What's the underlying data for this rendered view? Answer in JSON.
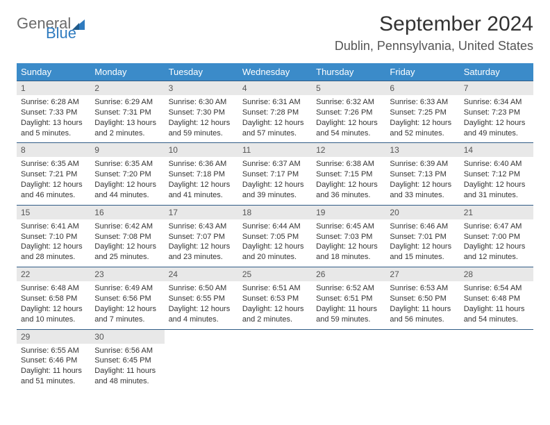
{
  "logo": {
    "general": "General",
    "blue": "Blue",
    "sail_color": "#2f7bbf"
  },
  "title": "September 2024",
  "location": "Dublin, Pennsylvania, United States",
  "style": {
    "header_bg": "#3b8bc9",
    "header_fg": "#ffffff",
    "daynum_bg": "#e8e8e8",
    "rule_color": "#2f5b85",
    "body_font_size": 11,
    "th_font_size": 13,
    "title_font_size": 30,
    "location_font_size": 18
  },
  "weekdays": [
    "Sunday",
    "Monday",
    "Tuesday",
    "Wednesday",
    "Thursday",
    "Friday",
    "Saturday"
  ],
  "weeks": [
    [
      {
        "day": "1",
        "sunrise": "Sunrise: 6:28 AM",
        "sunset": "Sunset: 7:33 PM",
        "daylight": "Daylight: 13 hours and 5 minutes."
      },
      {
        "day": "2",
        "sunrise": "Sunrise: 6:29 AM",
        "sunset": "Sunset: 7:31 PM",
        "daylight": "Daylight: 13 hours and 2 minutes."
      },
      {
        "day": "3",
        "sunrise": "Sunrise: 6:30 AM",
        "sunset": "Sunset: 7:30 PM",
        "daylight": "Daylight: 12 hours and 59 minutes."
      },
      {
        "day": "4",
        "sunrise": "Sunrise: 6:31 AM",
        "sunset": "Sunset: 7:28 PM",
        "daylight": "Daylight: 12 hours and 57 minutes."
      },
      {
        "day": "5",
        "sunrise": "Sunrise: 6:32 AM",
        "sunset": "Sunset: 7:26 PM",
        "daylight": "Daylight: 12 hours and 54 minutes."
      },
      {
        "day": "6",
        "sunrise": "Sunrise: 6:33 AM",
        "sunset": "Sunset: 7:25 PM",
        "daylight": "Daylight: 12 hours and 52 minutes."
      },
      {
        "day": "7",
        "sunrise": "Sunrise: 6:34 AM",
        "sunset": "Sunset: 7:23 PM",
        "daylight": "Daylight: 12 hours and 49 minutes."
      }
    ],
    [
      {
        "day": "8",
        "sunrise": "Sunrise: 6:35 AM",
        "sunset": "Sunset: 7:21 PM",
        "daylight": "Daylight: 12 hours and 46 minutes."
      },
      {
        "day": "9",
        "sunrise": "Sunrise: 6:35 AM",
        "sunset": "Sunset: 7:20 PM",
        "daylight": "Daylight: 12 hours and 44 minutes."
      },
      {
        "day": "10",
        "sunrise": "Sunrise: 6:36 AM",
        "sunset": "Sunset: 7:18 PM",
        "daylight": "Daylight: 12 hours and 41 minutes."
      },
      {
        "day": "11",
        "sunrise": "Sunrise: 6:37 AM",
        "sunset": "Sunset: 7:17 PM",
        "daylight": "Daylight: 12 hours and 39 minutes."
      },
      {
        "day": "12",
        "sunrise": "Sunrise: 6:38 AM",
        "sunset": "Sunset: 7:15 PM",
        "daylight": "Daylight: 12 hours and 36 minutes."
      },
      {
        "day": "13",
        "sunrise": "Sunrise: 6:39 AM",
        "sunset": "Sunset: 7:13 PM",
        "daylight": "Daylight: 12 hours and 33 minutes."
      },
      {
        "day": "14",
        "sunrise": "Sunrise: 6:40 AM",
        "sunset": "Sunset: 7:12 PM",
        "daylight": "Daylight: 12 hours and 31 minutes."
      }
    ],
    [
      {
        "day": "15",
        "sunrise": "Sunrise: 6:41 AM",
        "sunset": "Sunset: 7:10 PM",
        "daylight": "Daylight: 12 hours and 28 minutes."
      },
      {
        "day": "16",
        "sunrise": "Sunrise: 6:42 AM",
        "sunset": "Sunset: 7:08 PM",
        "daylight": "Daylight: 12 hours and 25 minutes."
      },
      {
        "day": "17",
        "sunrise": "Sunrise: 6:43 AM",
        "sunset": "Sunset: 7:07 PM",
        "daylight": "Daylight: 12 hours and 23 minutes."
      },
      {
        "day": "18",
        "sunrise": "Sunrise: 6:44 AM",
        "sunset": "Sunset: 7:05 PM",
        "daylight": "Daylight: 12 hours and 20 minutes."
      },
      {
        "day": "19",
        "sunrise": "Sunrise: 6:45 AM",
        "sunset": "Sunset: 7:03 PM",
        "daylight": "Daylight: 12 hours and 18 minutes."
      },
      {
        "day": "20",
        "sunrise": "Sunrise: 6:46 AM",
        "sunset": "Sunset: 7:01 PM",
        "daylight": "Daylight: 12 hours and 15 minutes."
      },
      {
        "day": "21",
        "sunrise": "Sunrise: 6:47 AM",
        "sunset": "Sunset: 7:00 PM",
        "daylight": "Daylight: 12 hours and 12 minutes."
      }
    ],
    [
      {
        "day": "22",
        "sunrise": "Sunrise: 6:48 AM",
        "sunset": "Sunset: 6:58 PM",
        "daylight": "Daylight: 12 hours and 10 minutes."
      },
      {
        "day": "23",
        "sunrise": "Sunrise: 6:49 AM",
        "sunset": "Sunset: 6:56 PM",
        "daylight": "Daylight: 12 hours and 7 minutes."
      },
      {
        "day": "24",
        "sunrise": "Sunrise: 6:50 AM",
        "sunset": "Sunset: 6:55 PM",
        "daylight": "Daylight: 12 hours and 4 minutes."
      },
      {
        "day": "25",
        "sunrise": "Sunrise: 6:51 AM",
        "sunset": "Sunset: 6:53 PM",
        "daylight": "Daylight: 12 hours and 2 minutes."
      },
      {
        "day": "26",
        "sunrise": "Sunrise: 6:52 AM",
        "sunset": "Sunset: 6:51 PM",
        "daylight": "Daylight: 11 hours and 59 minutes."
      },
      {
        "day": "27",
        "sunrise": "Sunrise: 6:53 AM",
        "sunset": "Sunset: 6:50 PM",
        "daylight": "Daylight: 11 hours and 56 minutes."
      },
      {
        "day": "28",
        "sunrise": "Sunrise: 6:54 AM",
        "sunset": "Sunset: 6:48 PM",
        "daylight": "Daylight: 11 hours and 54 minutes."
      }
    ],
    [
      {
        "day": "29",
        "sunrise": "Sunrise: 6:55 AM",
        "sunset": "Sunset: 6:46 PM",
        "daylight": "Daylight: 11 hours and 51 minutes."
      },
      {
        "day": "30",
        "sunrise": "Sunrise: 6:56 AM",
        "sunset": "Sunset: 6:45 PM",
        "daylight": "Daylight: 11 hours and 48 minutes."
      },
      null,
      null,
      null,
      null,
      null
    ]
  ]
}
